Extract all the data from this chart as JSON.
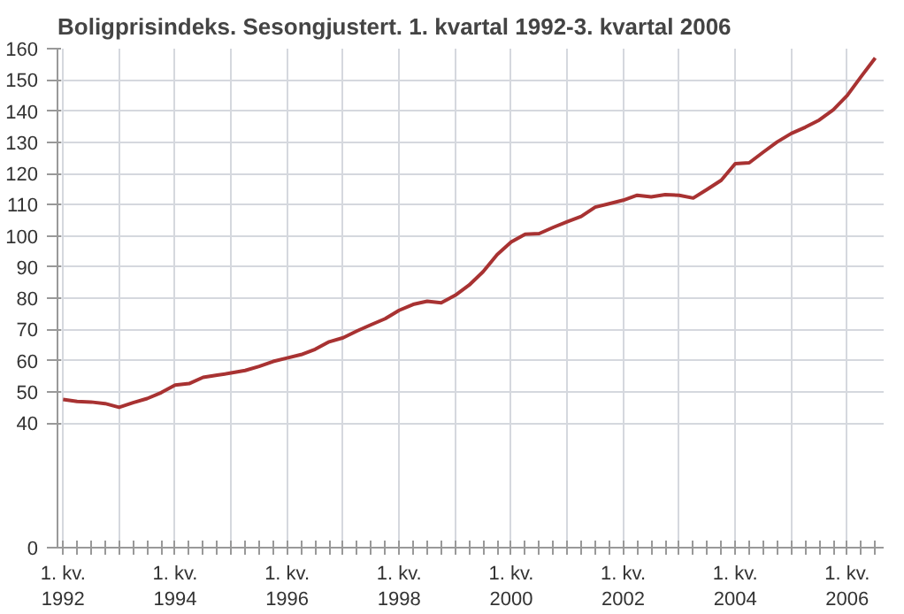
{
  "chart_data": {
    "type": "line",
    "title": "Boligprisindeks. Sesongjustert. 1. kvartal 1992-3. kvartal 2006",
    "categories": [
      "1. kv.\n1992",
      null,
      null,
      null,
      null,
      null,
      null,
      null,
      "1. kv.\n1994",
      null,
      null,
      null,
      null,
      null,
      null,
      null,
      "1. kv.\n1996",
      null,
      null,
      null,
      null,
      null,
      null,
      null,
      "1. kv.\n1998",
      null,
      null,
      null,
      null,
      null,
      null,
      null,
      "1. kv.\n2000",
      null,
      null,
      null,
      null,
      null,
      null,
      null,
      "1. kv.\n2002",
      null,
      null,
      null,
      null,
      null,
      null,
      null,
      "1. kv.\n2004",
      null,
      null,
      null,
      null,
      null,
      null,
      null,
      "1. kv.\n2006",
      null,
      null
    ],
    "series": [
      {
        "color": "#a83232",
        "values": [
          47.5,
          46.9,
          46.7,
          46.2,
          45.0,
          46.5,
          47.8,
          49.7,
          52.1,
          52.6,
          54.6,
          55.3,
          56.0,
          56.8,
          58.1,
          59.7,
          60.8,
          61.9,
          63.6,
          66.0,
          67.3,
          69.5,
          71.5,
          73.4,
          76.1,
          78.0,
          79.0,
          78.5,
          80.9,
          84.2,
          88.5,
          94.0,
          98.0,
          100.5,
          100.7,
          102.7,
          104.5,
          106.2,
          109.2,
          110.3,
          111.4,
          113.0,
          112.5,
          113.2,
          113.0,
          112.1,
          114.9,
          117.8,
          123.1,
          123.4,
          126.8,
          130.1,
          132.8,
          134.8,
          137.1,
          140.4,
          145.0,
          151.1,
          157.0
        ]
      }
    ],
    "ylim": [
      0,
      160
    ],
    "yticks": [
      0,
      40,
      50,
      60,
      70,
      80,
      90,
      100,
      110,
      120,
      130,
      140,
      150,
      160
    ],
    "grid": true,
    "line_style": "solid",
    "marker": "none"
  }
}
